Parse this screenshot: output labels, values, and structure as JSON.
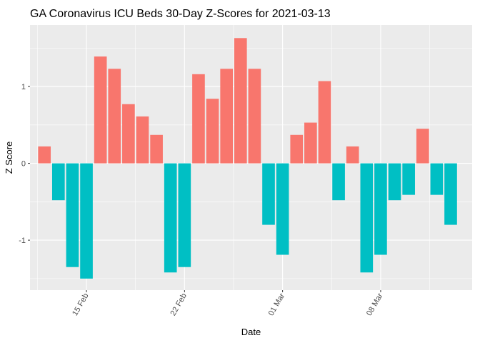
{
  "chart_data": {
    "type": "bar",
    "title": "GA Coronavirus ICU Beds 30-Day Z-Scores for 2021-03-13",
    "xlabel": "Date",
    "ylabel": "Z Score",
    "x": [
      "2021-02-12",
      "2021-02-13",
      "2021-02-14",
      "2021-02-15",
      "2021-02-16",
      "2021-02-17",
      "2021-02-18",
      "2021-02-19",
      "2021-02-20",
      "2021-02-21",
      "2021-02-22",
      "2021-02-23",
      "2021-02-24",
      "2021-02-25",
      "2021-02-26",
      "2021-02-27",
      "2021-02-28",
      "2021-03-01",
      "2021-03-02",
      "2021-03-03",
      "2021-03-04",
      "2021-03-05",
      "2021-03-06",
      "2021-03-07",
      "2021-03-08",
      "2021-03-09",
      "2021-03-10",
      "2021-03-11",
      "2021-03-12",
      "2021-03-13",
      "2021-03-14"
    ],
    "values": [
      0.22,
      -0.48,
      -1.35,
      -1.5,
      1.39,
      1.23,
      0.77,
      0.61,
      0.37,
      -1.42,
      -1.35,
      1.16,
      0.84,
      1.23,
      1.63,
      1.23,
      -0.8,
      -1.19,
      0.37,
      0.53,
      1.07,
      -0.48,
      0.22,
      -1.42,
      -1.19,
      -0.48,
      -0.41,
      0.45,
      -0.41,
      -0.8,
      null
    ],
    "ylim": [
      -1.65,
      1.8
    ],
    "y_ticks": [
      -1,
      0,
      1
    ],
    "y_tick_labels": [
      "-1",
      "0",
      "1"
    ],
    "x_ticks": [
      "2021-02-15",
      "2021-02-22",
      "2021-03-01",
      "2021-03-08"
    ],
    "x_tick_labels": [
      "15 Feb",
      "22 Feb",
      "01 Mar",
      "08 Mar"
    ],
    "grid": true,
    "legend": "none",
    "colors": {
      "positive": "#F8766D",
      "negative": "#00BFC4",
      "panel": "#EBEBEB",
      "grid": "#FFFFFF"
    }
  }
}
